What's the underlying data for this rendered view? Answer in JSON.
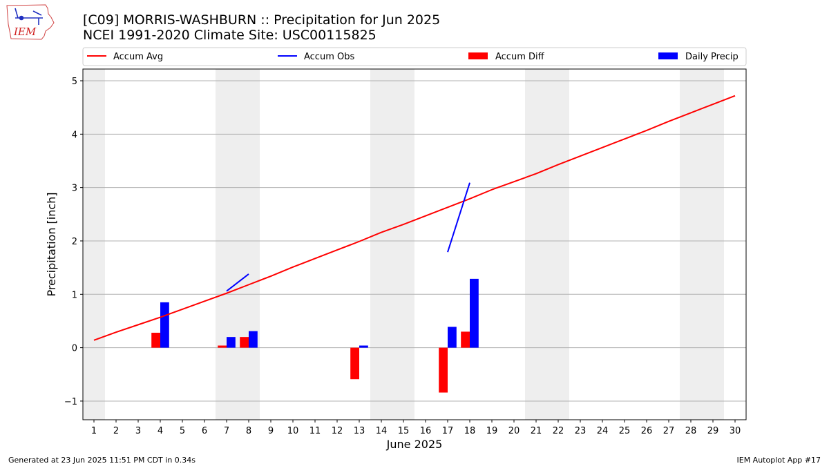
{
  "header": {
    "logo_text": "IEM",
    "title_line1": "[C09] MORRIS-WASHBURN :: Precipitation for Jun 2025",
    "title_line2": "NCEI 1991-2020 Climate Site: USC00115825"
  },
  "footer": {
    "generated": "Generated at 23 Jun 2025 11:51 PM CDT in 0.34s",
    "app": "IEM Autoplot App #17"
  },
  "colors": {
    "avg": "#ff0000",
    "obs": "#0000ff",
    "diff": "#ff0000",
    "daily": "#0000ff",
    "weekend_shade": "#eeeeee",
    "grid": "#b0b0b0"
  },
  "chart_data": {
    "type": "bar",
    "title": "[C09] MORRIS-WASHBURN :: Precipitation for Jun 2025",
    "subtitle": "NCEI 1991-2020 Climate Site: USC00115825",
    "xlabel": "June 2025",
    "ylabel": "Precipitation [inch]",
    "xlim": [
      0.5,
      30.5
    ],
    "ylim": [
      -1.35,
      5.22
    ],
    "yticks": [
      -1,
      0,
      1,
      2,
      3,
      4,
      5
    ],
    "ytick_labels": [
      "−1",
      "0",
      "1",
      "2",
      "3",
      "4",
      "5"
    ],
    "x": [
      1,
      2,
      3,
      4,
      5,
      6,
      7,
      8,
      9,
      10,
      11,
      12,
      13,
      14,
      15,
      16,
      17,
      18,
      19,
      20,
      21,
      22,
      23,
      24,
      25,
      26,
      27,
      28,
      29,
      30
    ],
    "grid": "horizontal",
    "legend_position": "top",
    "weekend_days": [
      1,
      7,
      8,
      14,
      15,
      21,
      22,
      28,
      29
    ],
    "series": [
      {
        "name": "Accum Avg",
        "kind": "line",
        "x": [
          1,
          2,
          3,
          4,
          5,
          6,
          7,
          8,
          9,
          10,
          11,
          12,
          13,
          14,
          15,
          16,
          17,
          18,
          19,
          20,
          21,
          22,
          23,
          24,
          25,
          26,
          27,
          28,
          29,
          30
        ],
        "values": [
          0.14,
          0.29,
          0.43,
          0.57,
          0.72,
          0.87,
          1.02,
          1.18,
          1.34,
          1.51,
          1.67,
          1.83,
          1.99,
          2.16,
          2.31,
          2.47,
          2.63,
          2.79,
          2.96,
          3.11,
          3.26,
          3.43,
          3.59,
          3.75,
          3.91,
          4.07,
          4.24,
          4.4,
          4.56,
          4.72
        ]
      },
      {
        "name": "Accum Obs",
        "kind": "line",
        "segments": [
          {
            "x": [
              7,
              8
            ],
            "values": [
              1.06,
              1.38
            ]
          },
          {
            "x": [
              17,
              18
            ],
            "values": [
              1.79,
              3.09
            ]
          }
        ]
      },
      {
        "name": "Accum Diff",
        "kind": "bar",
        "x": [
          4,
          7,
          8,
          13,
          17,
          18
        ],
        "values": [
          0.28,
          0.04,
          0.2,
          -0.59,
          -0.84,
          0.3
        ]
      },
      {
        "name": "Daily Precip",
        "kind": "bar",
        "x": [
          4,
          7,
          8,
          13,
          17,
          18
        ],
        "values": [
          0.85,
          0.2,
          0.31,
          0.04,
          0.39,
          1.29
        ]
      }
    ]
  }
}
